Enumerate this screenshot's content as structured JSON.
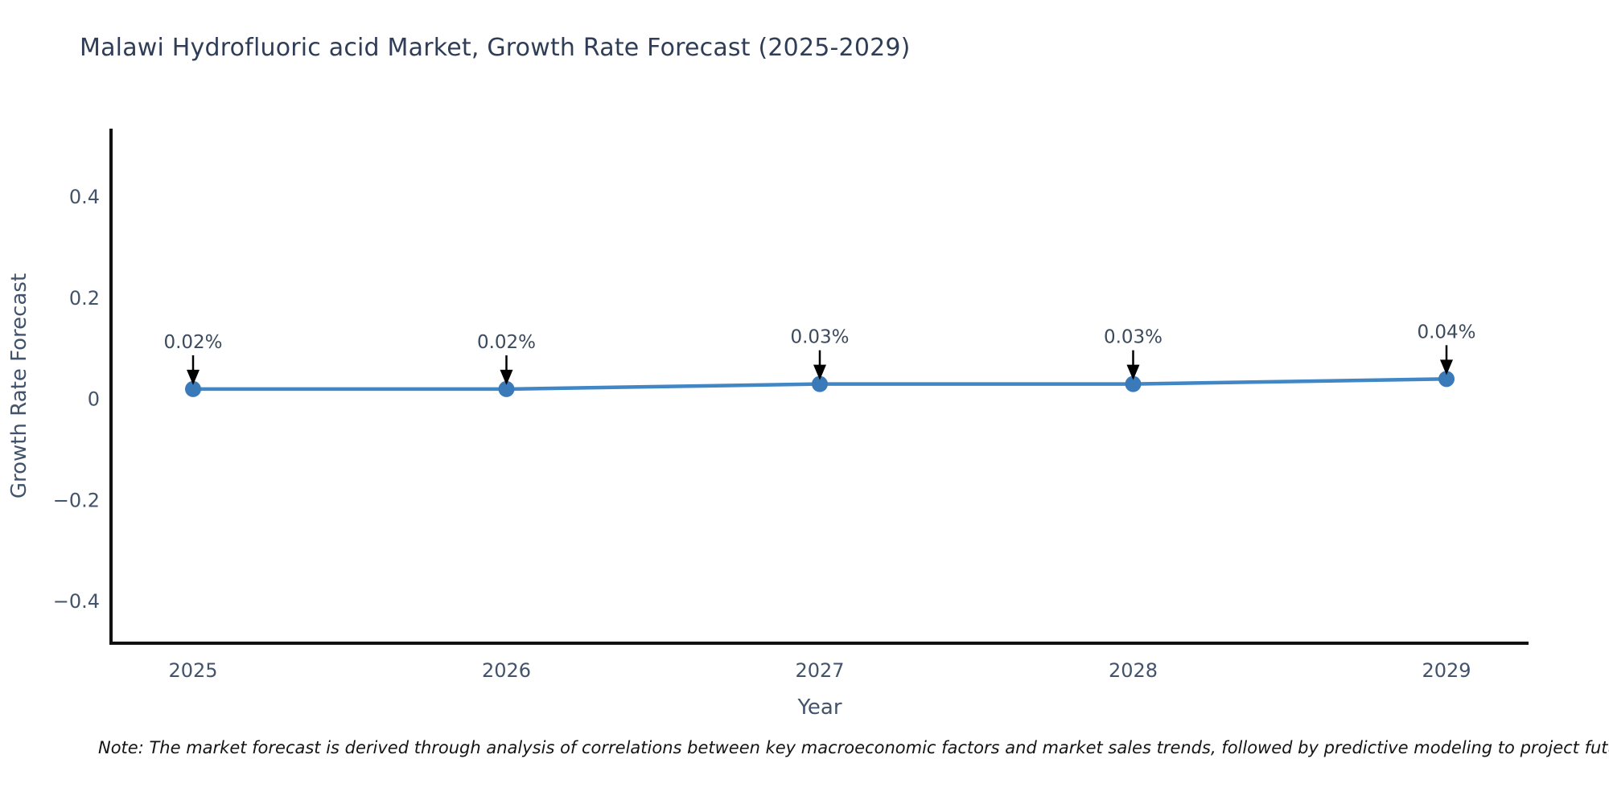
{
  "title": "Malawi Hydrofluoric acid Market, Growth Rate Forecast (2025-2029)",
  "note": "Note: The market forecast is derived through analysis of correlations between key macroeconomic factors and market sales trends, followed by predictive modeling to project future sales",
  "chart_data": {
    "type": "line",
    "title": "Malawi Hydrofluoric acid Market, Growth Rate Forecast (2025-2029)",
    "x": [
      2025,
      2026,
      2027,
      2028,
      2029
    ],
    "categories": [
      "2025",
      "2026",
      "2027",
      "2028",
      "2029"
    ],
    "values": [
      0.02,
      0.02,
      0.03,
      0.03,
      0.04
    ],
    "annotations": [
      "0.02%",
      "0.02%",
      "0.03%",
      "0.03%",
      "0.04%"
    ],
    "xlabel": "Year",
    "ylabel": "Growth Rate Forecast",
    "yticks": [
      0.4,
      0.2,
      0,
      -0.2,
      -0.4
    ],
    "ytick_labels": [
      "0.4",
      "0.2",
      "0",
      "−0.2",
      "−0.4"
    ],
    "ylim": [
      -0.48,
      0.54
    ],
    "grid": false,
    "legend_position": "none",
    "colors": {
      "line": "#4186c5",
      "marker": "#3a7ab8",
      "arrow": "#000000",
      "spine": "#111111",
      "axis_text": "#42536b",
      "title_text": "#2f3d56"
    }
  }
}
